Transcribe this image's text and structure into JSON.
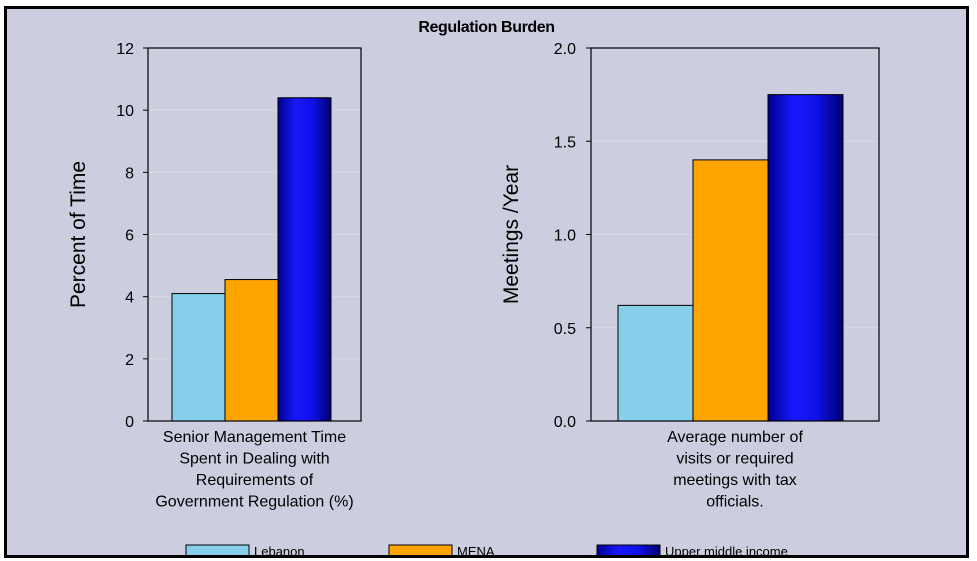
{
  "title": "Regulation Burden",
  "legend": [
    {
      "name": "Lebanon",
      "color": "#87ceeb"
    },
    {
      "name": "MENA",
      "color": "#ffa500"
    },
    {
      "name": "Upper middle income",
      "color": "#0000cd"
    }
  ],
  "chart_data": [
    {
      "type": "bar",
      "categories": [
        "Senior Management Time Spent in Dealing with Requirements of Government Regulation (%)"
      ],
      "category_lines": [
        "Senior Management Time",
        "Spent in Dealing with",
        "Requirements of",
        "Government Regulation (%)"
      ],
      "series": [
        {
          "name": "Lebanon",
          "values": [
            4.1
          ]
        },
        {
          "name": "MENA",
          "values": [
            4.55
          ]
        },
        {
          "name": "Upper middle income",
          "values": [
            10.4
          ]
        }
      ],
      "ylabel": "Percent of Time",
      "ylim": [
        0,
        12
      ],
      "yticks": [
        "0",
        "2",
        "4",
        "6",
        "8",
        "10",
        "12"
      ],
      "grid": true
    },
    {
      "type": "bar",
      "categories": [
        "Average number of visits or required meetings with tax officials."
      ],
      "category_lines": [
        "Average number of",
        "visits or required",
        "meetings with tax",
        "officials."
      ],
      "series": [
        {
          "name": "Lebanon",
          "values": [
            0.62
          ]
        },
        {
          "name": "MENA",
          "values": [
            1.4
          ]
        },
        {
          "name": "Upper middle income",
          "values": [
            1.75
          ]
        }
      ],
      "ylabel": "Meetings /Year",
      "ylim": [
        0,
        2
      ],
      "yticks": [
        "0.0",
        "0.5",
        "1.0",
        "1.5",
        "2.0"
      ],
      "grid": true
    }
  ]
}
